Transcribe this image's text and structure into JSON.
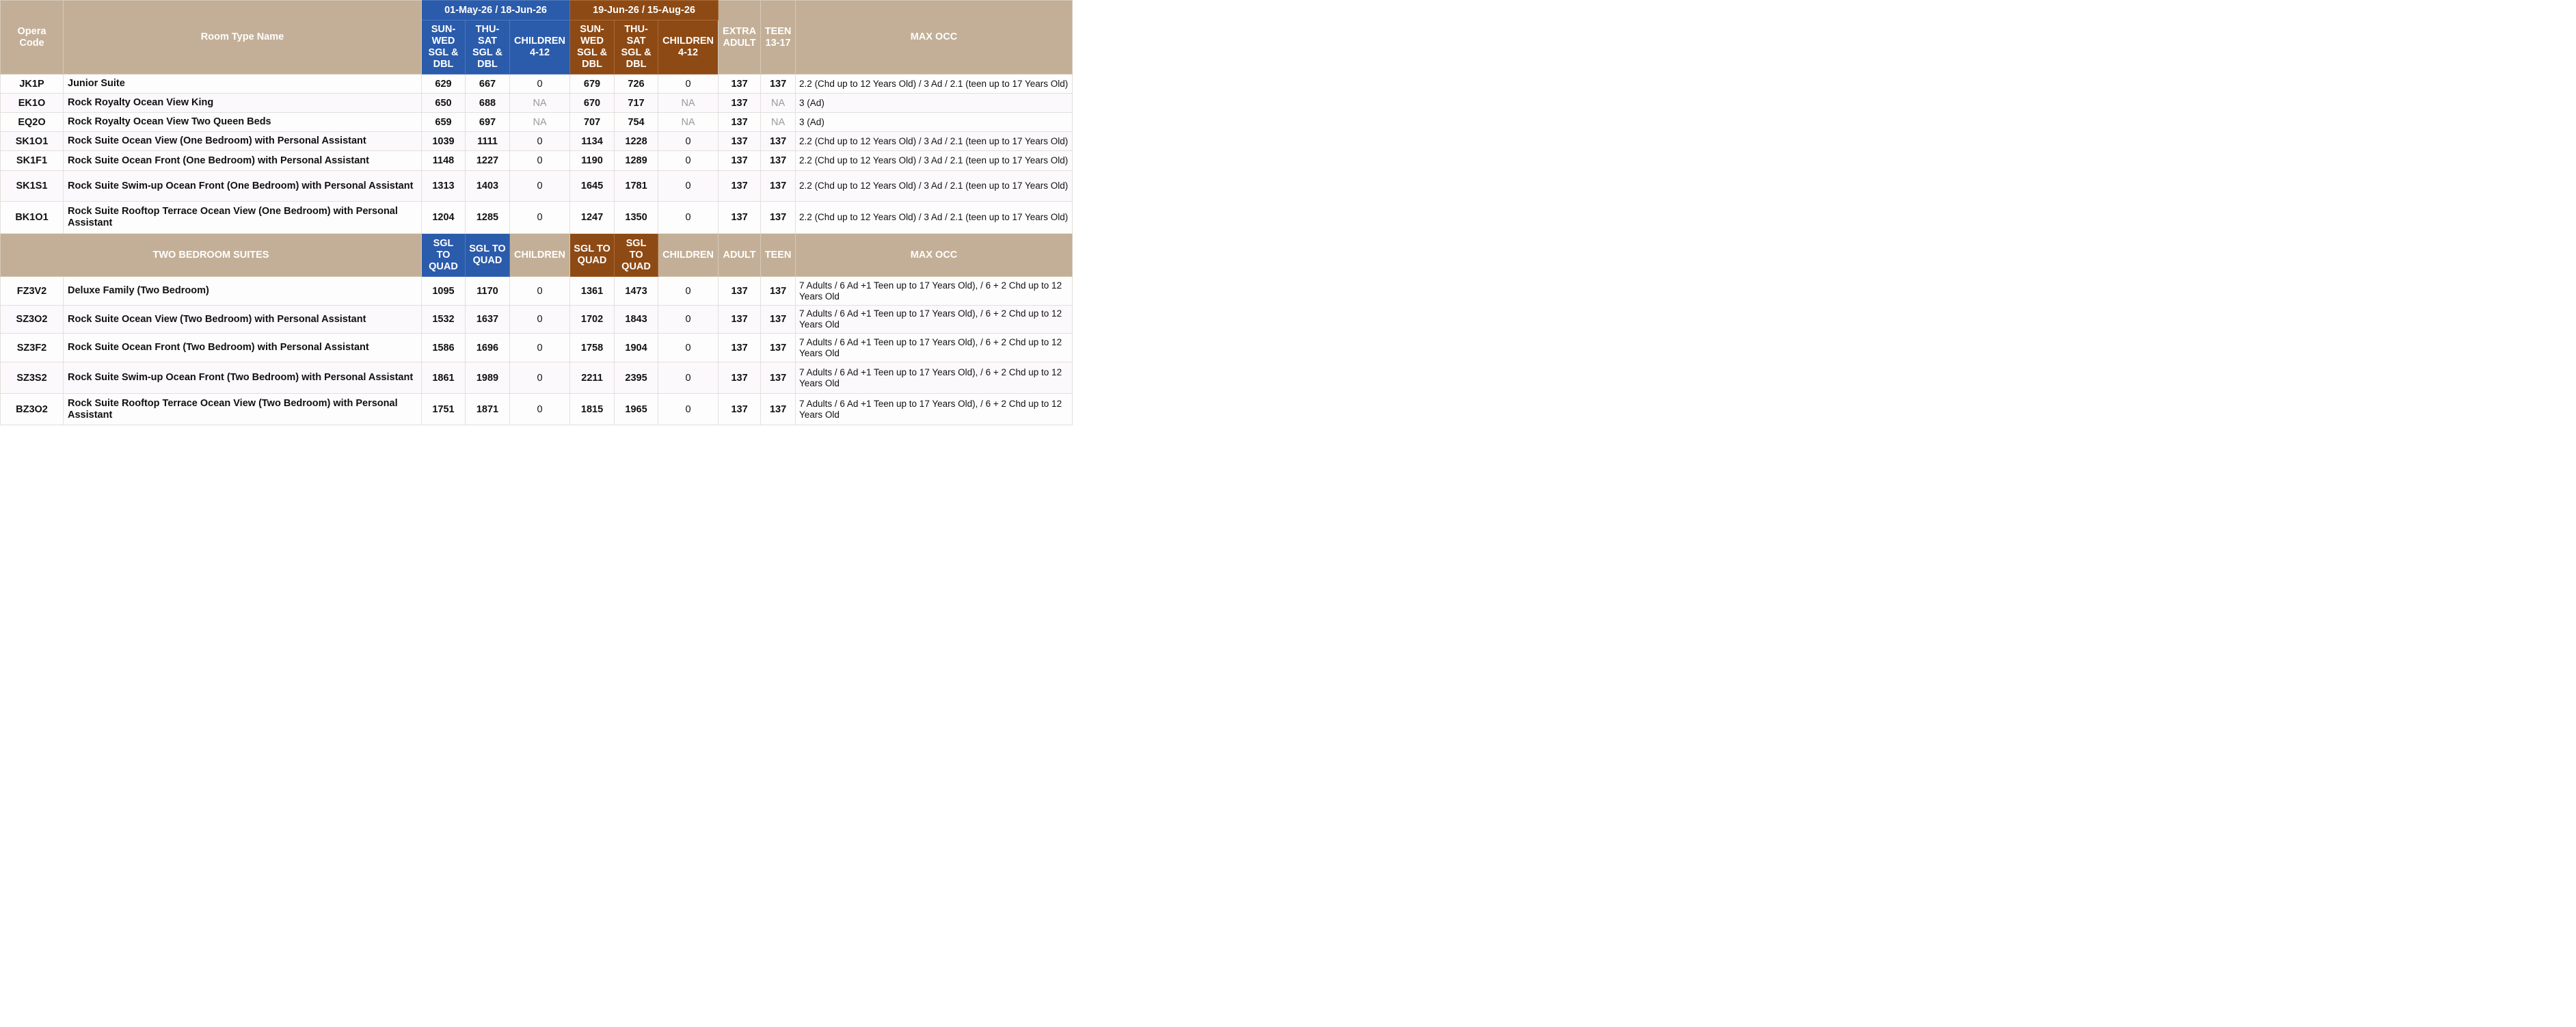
{
  "colors": {
    "header_tan": "#c3af97",
    "period1_blue": "#2b5bab",
    "period2_brown": "#8e4a14",
    "na_gray": "#9a9a9a"
  },
  "header": {
    "opera_code": "Opera Code",
    "room_type_name": "Room Type Name",
    "period1": "01-May-26 / 18-Jun-26",
    "period2": "19-Jun-26 / 15-Aug-26",
    "sun_wed": "SUN-WED SGL & DBL",
    "thu_sat": "THU-SAT SGL & DBL",
    "children": "CHILDREN 4-12",
    "extra_adult": "EXTRA ADULT",
    "teen": "TEEN 13-17",
    "max_occ": "MAX OCC"
  },
  "one_bedroom_rows": [
    {
      "code": "JK1P",
      "name": "Junior Suite",
      "p1_sw": "629",
      "p1_ts": "667",
      "p1_ch": "0",
      "p2_sw": "679",
      "p2_ts": "726",
      "p2_ch": "0",
      "adult": "137",
      "teen": "137",
      "occ": "2.2 (Chd up to 12 Years Old) / 3 Ad / 2.1 (teen up to 17 Years Old)"
    },
    {
      "code": "EK1O",
      "name": "Rock Royalty Ocean View King",
      "p1_sw": "650",
      "p1_ts": "688",
      "p1_ch": "NA",
      "p2_sw": "670",
      "p2_ts": "717",
      "p2_ch": "NA",
      "adult": "137",
      "teen": "NA",
      "occ": "3 (Ad)"
    },
    {
      "code": "EQ2O",
      "name": "Rock Royalty Ocean View Two Queen Beds",
      "p1_sw": "659",
      "p1_ts": "697",
      "p1_ch": "NA",
      "p2_sw": "707",
      "p2_ts": "754",
      "p2_ch": "NA",
      "adult": "137",
      "teen": "NA",
      "occ": "3 (Ad)"
    },
    {
      "code": "SK1O1",
      "name": "Rock Suite Ocean View (One Bedroom) with Personal Assistant",
      "p1_sw": "1039",
      "p1_ts": "1111",
      "p1_ch": "0",
      "p2_sw": "1134",
      "p2_ts": "1228",
      "p2_ch": "0",
      "adult": "137",
      "teen": "137",
      "occ": "2.2 (Chd up to 12 Years Old) / 3 Ad / 2.1 (teen up to 17 Years Old)"
    },
    {
      "code": "SK1F1",
      "name": "Rock Suite Ocean Front (One Bedroom) with Personal Assistant",
      "p1_sw": "1148",
      "p1_ts": "1227",
      "p1_ch": "0",
      "p2_sw": "1190",
      "p2_ts": "1289",
      "p2_ch": "0",
      "adult": "137",
      "teen": "137",
      "occ": "2.2 (Chd up to 12 Years Old) / 3 Ad / 2.1 (teen up to 17 Years Old)"
    },
    {
      "code": "SK1S1",
      "name": "Rock Suite Swim-up Ocean Front (One Bedroom) with Personal Assistant",
      "p1_sw": "1313",
      "p1_ts": "1403",
      "p1_ch": "0",
      "p2_sw": "1645",
      "p2_ts": "1781",
      "p2_ch": "0",
      "adult": "137",
      "teen": "137",
      "occ": "2.2 (Chd up to 12 Years Old) / 3 Ad / 2.1 (teen up to 17 Years Old)"
    },
    {
      "code": "BK1O1",
      "name": "Rock Suite Rooftop Terrace Ocean View (One Bedroom) with Personal Assistant",
      "p1_sw": "1204",
      "p1_ts": "1285",
      "p1_ch": "0",
      "p2_sw": "1247",
      "p2_ts": "1350",
      "p2_ch": "0",
      "adult": "137",
      "teen": "137",
      "occ": "2.2 (Chd up to 12 Years Old) / 3 Ad / 2.1 (teen up to 17 Years Old)"
    }
  ],
  "two_bedroom_header": {
    "title": "TWO BEDROOM SUITES",
    "sgl_to_quad": "SGL TO QUAD",
    "children": "CHILDREN",
    "adult": "ADULT",
    "teen": "TEEN",
    "max_occ": "MAX OCC"
  },
  "two_bedroom_rows": [
    {
      "code": "FZ3V2",
      "name": "Deluxe Family (Two Bedroom)",
      "p1_sw": "1095",
      "p1_ts": "1170",
      "p1_ch": "0",
      "p2_sw": "1361",
      "p2_ts": "1473",
      "p2_ch": "0",
      "adult": "137",
      "teen": "137",
      "occ": "7 Adults / 6 Ad +1 Teen up to 17 Years Old), / 6 + 2 Chd up to 12 Years Old"
    },
    {
      "code": "SZ3O2",
      "name": "Rock Suite Ocean View (Two Bedroom) with Personal Assistant",
      "p1_sw": "1532",
      "p1_ts": "1637",
      "p1_ch": "0",
      "p2_sw": "1702",
      "p2_ts": "1843",
      "p2_ch": "0",
      "adult": "137",
      "teen": "137",
      "occ": "7 Adults / 6 Ad +1 Teen up to 17 Years Old), / 6 + 2 Chd up to 12 Years Old"
    },
    {
      "code": "SZ3F2",
      "name": "Rock Suite Ocean Front (Two Bedroom) with Personal Assistant",
      "p1_sw": "1586",
      "p1_ts": "1696",
      "p1_ch": "0",
      "p2_sw": "1758",
      "p2_ts": "1904",
      "p2_ch": "0",
      "adult": "137",
      "teen": "137",
      "occ": "7 Adults / 6 Ad +1 Teen up to 17 Years Old), / 6 + 2 Chd up to 12 Years Old"
    },
    {
      "code": "SZ3S2",
      "name": "Rock Suite Swim-up Ocean Front (Two Bedroom) with Personal Assistant",
      "p1_sw": "1861",
      "p1_ts": "1989",
      "p1_ch": "0",
      "p2_sw": "2211",
      "p2_ts": "2395",
      "p2_ch": "0",
      "adult": "137",
      "teen": "137",
      "occ": "7 Adults / 6 Ad +1 Teen up to 17 Years Old), / 6 + 2 Chd up to 12 Years Old"
    },
    {
      "code": "BZ3O2",
      "name": "Rock Suite Rooftop Terrace Ocean View (Two Bedroom) with Personal Assistant",
      "p1_sw": "1751",
      "p1_ts": "1871",
      "p1_ch": "0",
      "p2_sw": "1815",
      "p2_ts": "1965",
      "p2_ch": "0",
      "adult": "137",
      "teen": "137",
      "occ": "7 Adults / 6 Ad +1 Teen up to 17 Years Old), / 6 + 2 Chd up to 12 Years Old"
    }
  ]
}
